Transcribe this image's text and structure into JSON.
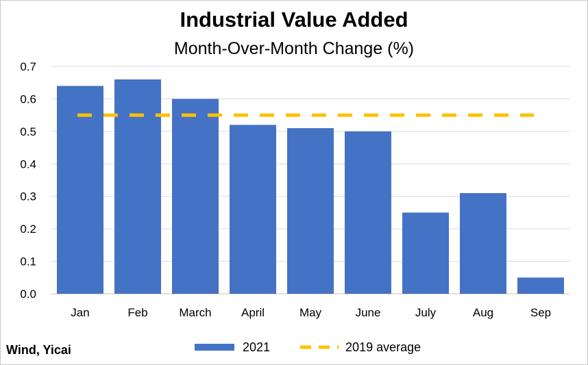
{
  "chart_data": {
    "type": "bar",
    "title": "Industrial Value Added",
    "subtitle": "Month-Over-Month Change (%)",
    "categories": [
      "Jan",
      "Feb",
      "March",
      "April",
      "May",
      "June",
      "July",
      "Aug",
      "Sep"
    ],
    "series": [
      {
        "name": "2021",
        "type": "bar",
        "color": "#4472c4",
        "values": [
          0.64,
          0.66,
          0.6,
          0.52,
          0.51,
          0.5,
          0.25,
          0.31,
          0.05
        ]
      },
      {
        "name": "2019 average",
        "type": "line",
        "style": "dashed",
        "color": "#ffc000",
        "values": [
          0.55,
          0.55,
          0.55,
          0.55,
          0.55,
          0.55,
          0.55,
          0.55,
          0.55
        ]
      }
    ],
    "ylim": [
      0,
      0.7
    ],
    "yticks": [
      "0.0",
      "0.1",
      "0.2",
      "0.3",
      "0.4",
      "0.5",
      "0.6",
      "0.7"
    ],
    "grid": "horizontal",
    "legend_position": "bottom"
  },
  "source": "Wind, Yicai"
}
